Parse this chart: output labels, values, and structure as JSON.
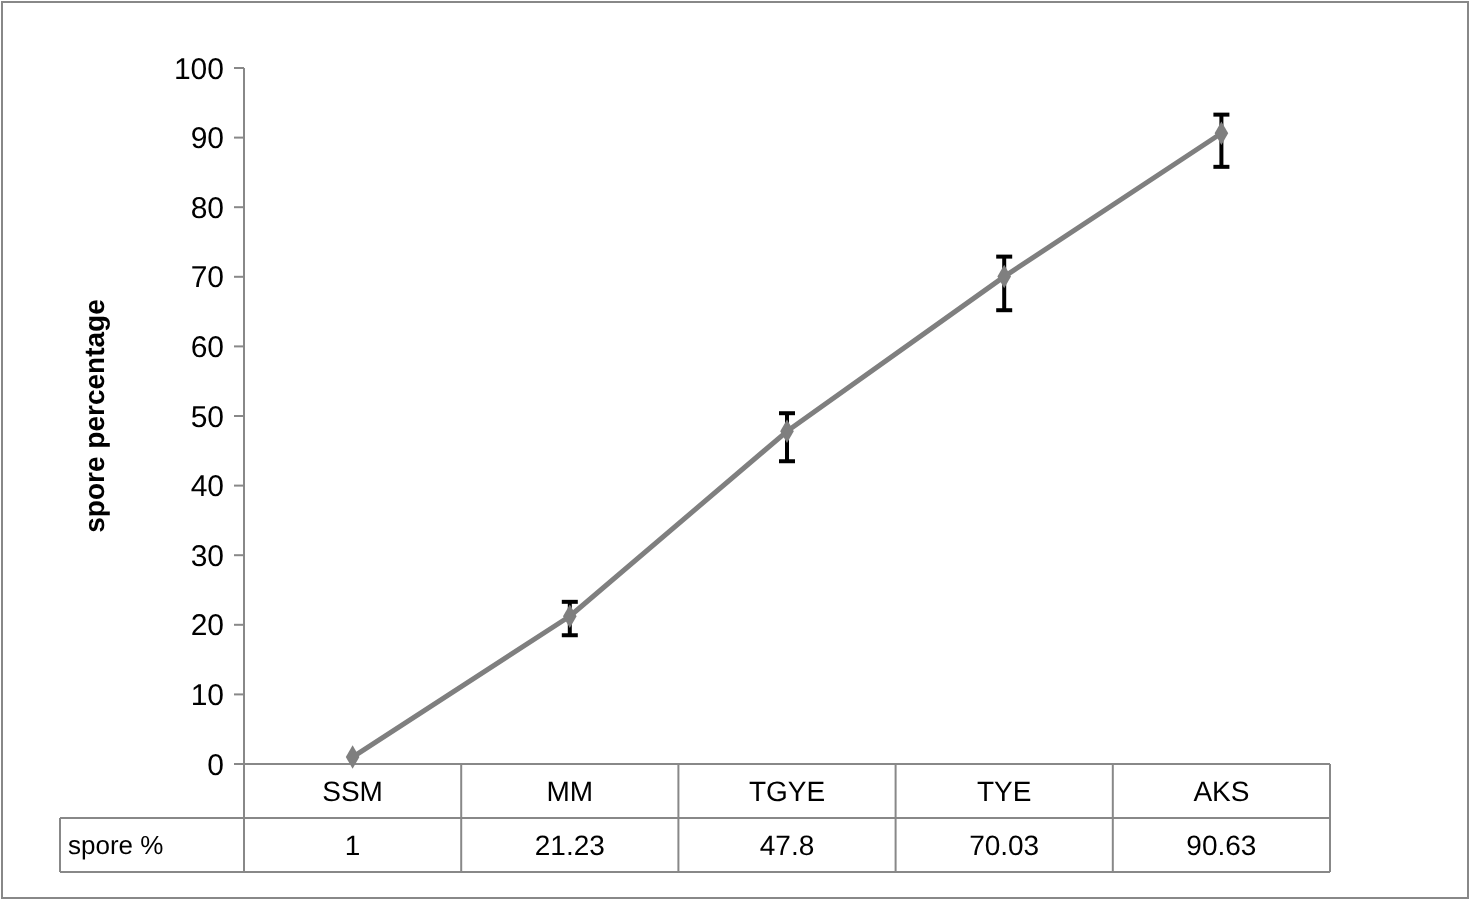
{
  "chart_data": {
    "type": "line",
    "ylabel": "spore percentage",
    "categories": [
      "SSM",
      "MM",
      "TGYE",
      "TYE",
      "AKS"
    ],
    "series": [
      {
        "name": "spore %",
        "color": "#7f7f7f",
        "values": [
          1,
          21.23,
          47.8,
          70.03,
          90.63
        ],
        "errors": [
          null,
          [
            18.5,
            23.3
          ],
          [
            43.5,
            50.4
          ],
          [
            65.2,
            72.9
          ],
          [
            85.8,
            93.3
          ]
        ]
      }
    ],
    "ylim": [
      0,
      100
    ],
    "yticks": [
      0,
      10,
      20,
      30,
      40,
      50,
      60,
      70,
      80,
      90,
      100
    ],
    "grid": false,
    "marker": "diamond",
    "line_style": "solid",
    "data_labels": true,
    "legend": "bottom"
  }
}
